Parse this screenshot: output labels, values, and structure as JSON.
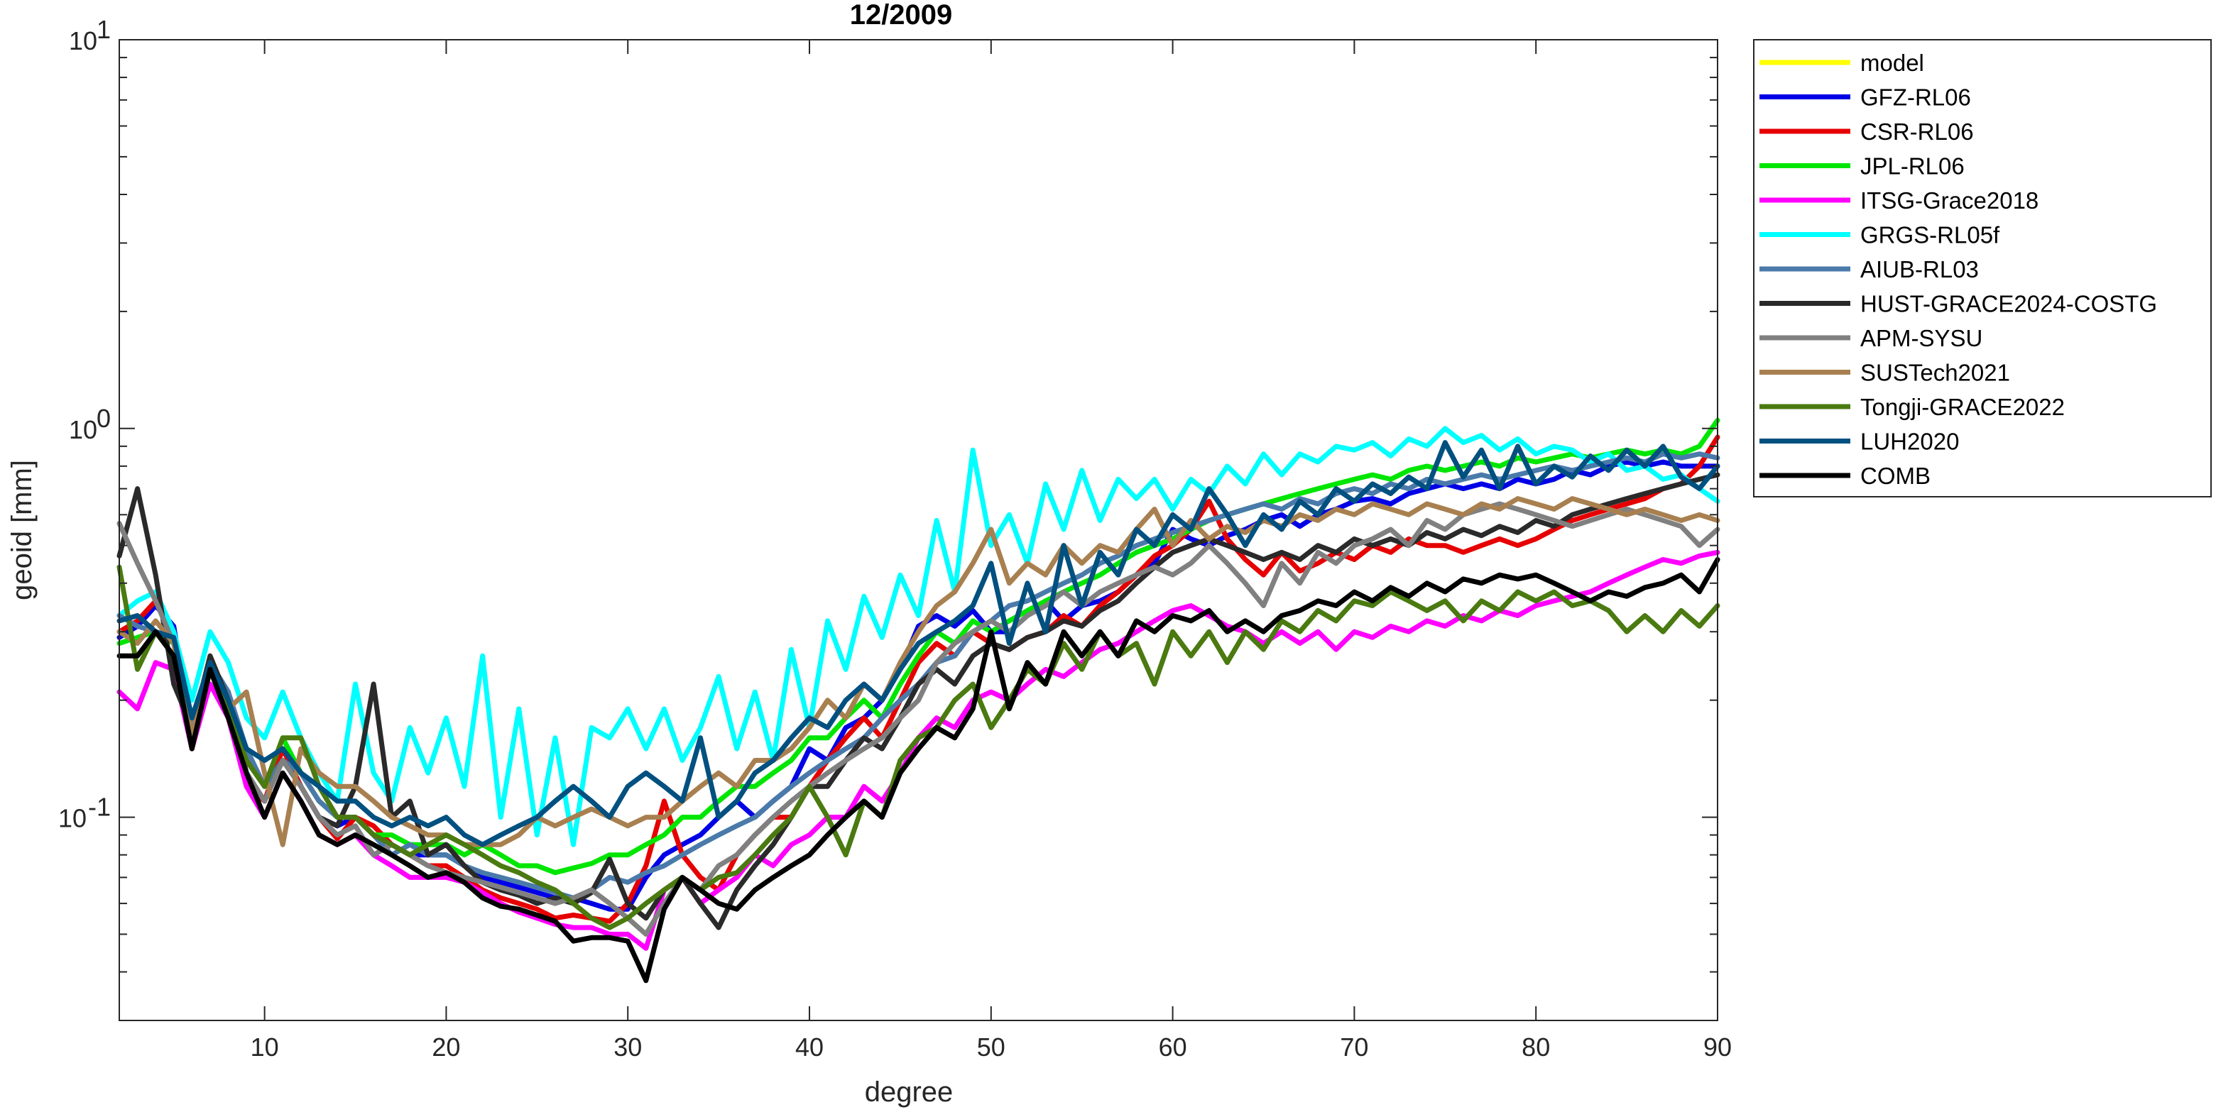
{
  "chart_data": {
    "type": "line",
    "title": "12/2009",
    "xlabel": "degree",
    "ylabel": "geoid [mm]",
    "xlim": [
      2,
      90
    ],
    "ylim": [
      0.03,
      10
    ],
    "yscale": "log",
    "xticks": [
      10,
      20,
      30,
      40,
      50,
      60,
      70,
      80,
      90
    ],
    "xtick_labels": [
      "10",
      "20",
      "30",
      "40",
      "50",
      "60",
      "70",
      "80",
      "90"
    ],
    "yticks": [
      {
        "value": 0.1,
        "base": "10",
        "exp": "-1"
      },
      {
        "value": 1,
        "base": "10",
        "exp": "0"
      },
      {
        "value": 10,
        "base": "10",
        "exp": "1"
      }
    ],
    "grid": false,
    "legend_position": "outside-right-top",
    "series": [
      {
        "name": "model",
        "color": "#ffff00",
        "y": []
      },
      {
        "name": "GFZ-RL06",
        "color": "#0000e6",
        "y": [
          0.29,
          0.31,
          0.35,
          0.31,
          0.16,
          0.25,
          0.21,
          0.13,
          0.11,
          0.15,
          0.12,
          0.1,
          0.095,
          0.1,
          0.09,
          0.085,
          0.08,
          0.08,
          0.08,
          0.075,
          0.07,
          0.068,
          0.066,
          0.064,
          0.062,
          0.062,
          0.06,
          0.058,
          0.058,
          0.07,
          0.08,
          0.085,
          0.09,
          0.1,
          0.11,
          0.1,
          0.11,
          0.12,
          0.15,
          0.14,
          0.17,
          0.18,
          0.2,
          0.24,
          0.31,
          0.33,
          0.31,
          0.34,
          0.3,
          0.3,
          0.33,
          0.36,
          0.32,
          0.35,
          0.36,
          0.38,
          0.42,
          0.45,
          0.55,
          0.52,
          0.5,
          0.53,
          0.55,
          0.58,
          0.6,
          0.56,
          0.6,
          0.62,
          0.65,
          0.66,
          0.64,
          0.68,
          0.7,
          0.72,
          0.7,
          0.72,
          0.7,
          0.74,
          0.72,
          0.74,
          0.78,
          0.76,
          0.8,
          0.82,
          0.8,
          0.82,
          0.8,
          0.8,
          0.8
        ]
      },
      {
        "name": "CSR-RL06",
        "color": "#e60000",
        "y": [
          0.3,
          0.32,
          0.36,
          0.3,
          0.15,
          0.26,
          0.2,
          0.12,
          0.11,
          0.15,
          0.12,
          0.1,
          0.088,
          0.1,
          0.095,
          0.085,
          0.08,
          0.075,
          0.075,
          0.07,
          0.065,
          0.062,
          0.06,
          0.058,
          0.055,
          0.056,
          0.055,
          0.054,
          0.06,
          0.075,
          0.11,
          0.08,
          0.07,
          0.065,
          0.08,
          0.09,
          0.1,
          0.1,
          0.12,
          0.14,
          0.16,
          0.18,
          0.16,
          0.2,
          0.25,
          0.28,
          0.26,
          0.3,
          0.28,
          0.27,
          0.29,
          0.3,
          0.33,
          0.31,
          0.35,
          0.38,
          0.42,
          0.47,
          0.5,
          0.55,
          0.65,
          0.52,
          0.46,
          0.42,
          0.48,
          0.43,
          0.45,
          0.48,
          0.46,
          0.5,
          0.48,
          0.52,
          0.5,
          0.5,
          0.48,
          0.5,
          0.52,
          0.5,
          0.52,
          0.55,
          0.58,
          0.6,
          0.62,
          0.64,
          0.66,
          0.7,
          0.72,
          0.8,
          0.95
        ]
      },
      {
        "name": "JPL-RL06",
        "color": "#00e600",
        "y": [
          0.28,
          0.29,
          0.3,
          0.28,
          0.18,
          0.24,
          0.2,
          0.14,
          0.12,
          0.16,
          0.13,
          0.11,
          0.1,
          0.1,
          0.09,
          0.09,
          0.085,
          0.085,
          0.085,
          0.08,
          0.085,
          0.08,
          0.075,
          0.075,
          0.072,
          0.074,
          0.076,
          0.08,
          0.08,
          0.085,
          0.09,
          0.1,
          0.1,
          0.11,
          0.12,
          0.12,
          0.13,
          0.14,
          0.16,
          0.16,
          0.18,
          0.2,
          0.18,
          0.22,
          0.26,
          0.3,
          0.28,
          0.32,
          0.3,
          0.32,
          0.34,
          0.36,
          0.38,
          0.4,
          0.42,
          0.45,
          0.48,
          0.5,
          0.52,
          0.55,
          0.58,
          0.6,
          0.62,
          0.64,
          0.66,
          0.68,
          0.7,
          0.72,
          0.74,
          0.76,
          0.74,
          0.78,
          0.8,
          0.78,
          0.8,
          0.82,
          0.8,
          0.84,
          0.82,
          0.84,
          0.86,
          0.84,
          0.86,
          0.88,
          0.86,
          0.88,
          0.86,
          0.9,
          1.05
        ]
      },
      {
        "name": "ITSG-Grace2018",
        "color": "#ff00ff",
        "y": [
          0.21,
          0.19,
          0.25,
          0.24,
          0.15,
          0.22,
          0.18,
          0.12,
          0.1,
          0.13,
          0.11,
          0.09,
          0.085,
          0.09,
          0.08,
          0.075,
          0.07,
          0.07,
          0.07,
          0.068,
          0.064,
          0.06,
          0.057,
          0.055,
          0.053,
          0.052,
          0.052,
          0.05,
          0.05,
          0.046,
          0.065,
          0.07,
          0.06,
          0.065,
          0.07,
          0.08,
          0.075,
          0.085,
          0.09,
          0.1,
          0.1,
          0.12,
          0.11,
          0.13,
          0.16,
          0.18,
          0.17,
          0.2,
          0.21,
          0.2,
          0.22,
          0.24,
          0.23,
          0.25,
          0.27,
          0.28,
          0.3,
          0.32,
          0.34,
          0.35,
          0.33,
          0.31,
          0.3,
          0.28,
          0.3,
          0.28,
          0.3,
          0.27,
          0.3,
          0.29,
          0.31,
          0.3,
          0.32,
          0.31,
          0.33,
          0.32,
          0.34,
          0.33,
          0.35,
          0.36,
          0.37,
          0.38,
          0.4,
          0.42,
          0.44,
          0.46,
          0.45,
          0.47,
          0.48
        ]
      },
      {
        "name": "GRGS-RL05f",
        "color": "#00ffff",
        "y": [
          0.33,
          0.36,
          0.38,
          0.3,
          0.2,
          0.3,
          0.25,
          0.18,
          0.16,
          0.21,
          0.16,
          0.13,
          0.11,
          0.22,
          0.13,
          0.11,
          0.17,
          0.13,
          0.18,
          0.12,
          0.26,
          0.1,
          0.19,
          0.09,
          0.16,
          0.085,
          0.17,
          0.16,
          0.19,
          0.15,
          0.19,
          0.14,
          0.17,
          0.23,
          0.15,
          0.21,
          0.14,
          0.27,
          0.17,
          0.32,
          0.24,
          0.37,
          0.29,
          0.42,
          0.33,
          0.58,
          0.38,
          0.88,
          0.5,
          0.6,
          0.45,
          0.72,
          0.55,
          0.78,
          0.58,
          0.74,
          0.66,
          0.74,
          0.62,
          0.74,
          0.68,
          0.8,
          0.72,
          0.86,
          0.76,
          0.86,
          0.82,
          0.9,
          0.88,
          0.92,
          0.85,
          0.94,
          0.9,
          1.0,
          0.92,
          0.96,
          0.88,
          0.94,
          0.86,
          0.9,
          0.88,
          0.82,
          0.86,
          0.78,
          0.8,
          0.74,
          0.76,
          0.7,
          0.65
        ]
      },
      {
        "name": "AIUB-RL03",
        "color": "#4a7aaa",
        "y": [
          0.33,
          0.31,
          0.3,
          0.29,
          0.18,
          0.25,
          0.21,
          0.15,
          0.12,
          0.14,
          0.13,
          0.11,
          0.1,
          0.1,
          0.09,
          0.08,
          0.085,
          0.08,
          0.08,
          0.075,
          0.072,
          0.07,
          0.068,
          0.066,
          0.064,
          0.062,
          0.065,
          0.07,
          0.068,
          0.072,
          0.075,
          0.08,
          0.085,
          0.09,
          0.095,
          0.1,
          0.11,
          0.12,
          0.13,
          0.14,
          0.15,
          0.16,
          0.18,
          0.2,
          0.22,
          0.25,
          0.26,
          0.3,
          0.32,
          0.35,
          0.36,
          0.38,
          0.4,
          0.42,
          0.45,
          0.47,
          0.5,
          0.52,
          0.54,
          0.56,
          0.58,
          0.6,
          0.62,
          0.64,
          0.62,
          0.66,
          0.64,
          0.68,
          0.7,
          0.68,
          0.72,
          0.7,
          0.74,
          0.72,
          0.74,
          0.76,
          0.74,
          0.76,
          0.78,
          0.8,
          0.78,
          0.8,
          0.82,
          0.84,
          0.82,
          0.86,
          0.84,
          0.86,
          0.84
        ]
      },
      {
        "name": "HUST-GRACE2024-COSTG",
        "color": "#2a2a2a",
        "y": [
          0.47,
          0.7,
          0.42,
          0.22,
          0.17,
          0.26,
          0.2,
          0.13,
          0.11,
          0.14,
          0.12,
          0.1,
          0.095,
          0.12,
          0.22,
          0.1,
          0.11,
          0.08,
          0.085,
          0.075,
          0.068,
          0.065,
          0.063,
          0.06,
          0.062,
          0.06,
          0.064,
          0.078,
          0.06,
          0.055,
          0.065,
          0.07,
          0.06,
          0.052,
          0.065,
          0.075,
          0.085,
          0.1,
          0.12,
          0.12,
          0.14,
          0.16,
          0.15,
          0.18,
          0.22,
          0.24,
          0.22,
          0.26,
          0.28,
          0.27,
          0.29,
          0.3,
          0.32,
          0.31,
          0.34,
          0.36,
          0.4,
          0.44,
          0.48,
          0.5,
          0.52,
          0.5,
          0.48,
          0.46,
          0.48,
          0.46,
          0.5,
          0.48,
          0.52,
          0.5,
          0.52,
          0.5,
          0.54,
          0.52,
          0.55,
          0.53,
          0.56,
          0.54,
          0.58,
          0.56,
          0.6,
          0.62,
          0.64,
          0.66,
          0.68,
          0.7,
          0.72,
          0.74,
          0.76
        ]
      },
      {
        "name": "APM-SYSU",
        "color": "#808080",
        "y": [
          0.57,
          0.45,
          0.36,
          0.28,
          0.17,
          0.24,
          0.19,
          0.13,
          0.11,
          0.14,
          0.12,
          0.1,
          0.09,
          0.095,
          0.08,
          0.085,
          0.08,
          0.075,
          0.072,
          0.07,
          0.068,
          0.066,
          0.064,
          0.062,
          0.06,
          0.062,
          0.065,
          0.06,
          0.055,
          0.05,
          0.06,
          0.07,
          0.065,
          0.075,
          0.08,
          0.09,
          0.1,
          0.11,
          0.12,
          0.13,
          0.14,
          0.15,
          0.16,
          0.18,
          0.2,
          0.25,
          0.28,
          0.3,
          0.32,
          0.3,
          0.33,
          0.35,
          0.38,
          0.35,
          0.38,
          0.4,
          0.42,
          0.44,
          0.42,
          0.45,
          0.5,
          0.45,
          0.4,
          0.35,
          0.45,
          0.4,
          0.48,
          0.45,
          0.5,
          0.52,
          0.55,
          0.5,
          0.58,
          0.55,
          0.6,
          0.62,
          0.64,
          0.62,
          0.6,
          0.58,
          0.56,
          0.58,
          0.6,
          0.62,
          0.6,
          0.58,
          0.56,
          0.5,
          0.55
        ]
      },
      {
        "name": "SUSTech2021",
        "color": "#a88050",
        "y": [
          0.3,
          0.28,
          0.32,
          0.28,
          0.16,
          0.25,
          0.19,
          0.21,
          0.13,
          0.085,
          0.15,
          0.13,
          0.12,
          0.12,
          0.11,
          0.1,
          0.095,
          0.09,
          0.09,
          0.085,
          0.085,
          0.085,
          0.09,
          0.1,
          0.095,
          0.1,
          0.105,
          0.1,
          0.095,
          0.1,
          0.1,
          0.11,
          0.12,
          0.13,
          0.12,
          0.14,
          0.14,
          0.15,
          0.17,
          0.2,
          0.18,
          0.22,
          0.2,
          0.25,
          0.3,
          0.35,
          0.38,
          0.45,
          0.55,
          0.4,
          0.45,
          0.42,
          0.5,
          0.45,
          0.5,
          0.48,
          0.55,
          0.62,
          0.5,
          0.58,
          0.52,
          0.56,
          0.54,
          0.58,
          0.56,
          0.6,
          0.58,
          0.62,
          0.6,
          0.64,
          0.62,
          0.6,
          0.64,
          0.62,
          0.6,
          0.64,
          0.62,
          0.66,
          0.64,
          0.62,
          0.66,
          0.64,
          0.62,
          0.6,
          0.62,
          0.6,
          0.58,
          0.6,
          0.58
        ]
      },
      {
        "name": "Tongji-GRACE2022",
        "color": "#4a7a10",
        "y": [
          0.44,
          0.24,
          0.3,
          0.26,
          0.15,
          0.24,
          0.19,
          0.14,
          0.12,
          0.16,
          0.16,
          0.12,
          0.1,
          0.1,
          0.09,
          0.085,
          0.08,
          0.085,
          0.09,
          0.085,
          0.08,
          0.075,
          0.072,
          0.068,
          0.065,
          0.06,
          0.055,
          0.052,
          0.055,
          0.06,
          0.065,
          0.07,
          0.065,
          0.07,
          0.072,
          0.08,
          0.09,
          0.1,
          0.12,
          0.1,
          0.08,
          0.11,
          0.1,
          0.14,
          0.16,
          0.17,
          0.2,
          0.22,
          0.17,
          0.2,
          0.24,
          0.22,
          0.28,
          0.24,
          0.3,
          0.26,
          0.28,
          0.22,
          0.3,
          0.26,
          0.3,
          0.25,
          0.3,
          0.27,
          0.32,
          0.3,
          0.34,
          0.32,
          0.36,
          0.35,
          0.38,
          0.36,
          0.34,
          0.36,
          0.32,
          0.36,
          0.34,
          0.38,
          0.36,
          0.38,
          0.35,
          0.36,
          0.34,
          0.3,
          0.33,
          0.3,
          0.34,
          0.31,
          0.35
        ]
      },
      {
        "name": "LUH2020",
        "color": "#005080",
        "y": [
          0.32,
          0.33,
          0.3,
          0.29,
          0.18,
          0.25,
          0.2,
          0.15,
          0.14,
          0.15,
          0.13,
          0.12,
          0.11,
          0.11,
          0.1,
          0.095,
          0.1,
          0.095,
          0.1,
          0.09,
          0.085,
          0.09,
          0.095,
          0.1,
          0.11,
          0.12,
          0.11,
          0.1,
          0.12,
          0.13,
          0.12,
          0.11,
          0.16,
          0.1,
          0.11,
          0.13,
          0.14,
          0.16,
          0.18,
          0.17,
          0.2,
          0.22,
          0.2,
          0.24,
          0.28,
          0.3,
          0.32,
          0.35,
          0.45,
          0.28,
          0.4,
          0.3,
          0.5,
          0.35,
          0.48,
          0.42,
          0.55,
          0.5,
          0.6,
          0.55,
          0.7,
          0.6,
          0.5,
          0.6,
          0.55,
          0.65,
          0.6,
          0.7,
          0.65,
          0.72,
          0.68,
          0.75,
          0.7,
          0.92,
          0.75,
          0.88,
          0.7,
          0.9,
          0.72,
          0.8,
          0.75,
          0.85,
          0.78,
          0.88,
          0.8,
          0.9,
          0.75,
          0.7,
          0.8
        ]
      },
      {
        "name": "COMB",
        "color": "#000000",
        "y": [
          0.26,
          0.26,
          0.3,
          0.26,
          0.15,
          0.24,
          0.18,
          0.13,
          0.1,
          0.13,
          0.11,
          0.09,
          0.085,
          0.09,
          0.085,
          0.08,
          0.075,
          0.07,
          0.072,
          0.068,
          0.062,
          0.059,
          0.058,
          0.056,
          0.054,
          0.048,
          0.049,
          0.049,
          0.048,
          0.038,
          0.058,
          0.07,
          0.065,
          0.06,
          0.058,
          0.065,
          0.07,
          0.075,
          0.08,
          0.09,
          0.1,
          0.11,
          0.1,
          0.13,
          0.15,
          0.17,
          0.16,
          0.19,
          0.3,
          0.19,
          0.25,
          0.22,
          0.3,
          0.26,
          0.3,
          0.26,
          0.32,
          0.3,
          0.33,
          0.32,
          0.34,
          0.3,
          0.32,
          0.3,
          0.33,
          0.34,
          0.36,
          0.35,
          0.38,
          0.36,
          0.39,
          0.37,
          0.4,
          0.38,
          0.41,
          0.4,
          0.42,
          0.41,
          0.42,
          0.4,
          0.38,
          0.36,
          0.38,
          0.37,
          0.39,
          0.4,
          0.42,
          0.38,
          0.46
        ]
      }
    ]
  }
}
